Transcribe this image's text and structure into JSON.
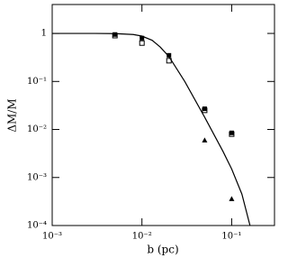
{
  "chart_data": {
    "type": "scatter",
    "x_label": "b (pc)",
    "y_label": "ΔM/M",
    "log_x": true,
    "log_y": true,
    "xlim": [
      0.001,
      0.3
    ],
    "ylim": [
      0.0001,
      4
    ],
    "xticks": [
      {
        "value": 0.001,
        "label": "10⁻³"
      },
      {
        "value": 0.01,
        "label": "10⁻²"
      },
      {
        "value": 0.1,
        "label": "10⁻¹"
      }
    ],
    "yticks": [
      {
        "value": 0.0001,
        "label": "10⁻⁴"
      },
      {
        "value": 0.001,
        "label": "10⁻³"
      },
      {
        "value": 0.01,
        "label": "10⁻²"
      },
      {
        "value": 0.1,
        "label": "10⁻¹"
      },
      1
    ],
    "series": [
      {
        "marker": "line",
        "color": "#000000",
        "x": [
          0.001,
          0.003,
          0.005,
          0.008,
          0.01,
          0.013,
          0.016,
          0.02,
          0.03,
          0.05,
          0.08,
          0.1,
          0.13,
          0.16
        ],
        "values": [
          1,
          1,
          0.99,
          0.95,
          0.88,
          0.72,
          0.52,
          0.33,
          0.1,
          0.018,
          0.0035,
          0.0015,
          0.00045,
          0.0001
        ]
      },
      {
        "marker": "square-filled",
        "color": "#000000",
        "x": [
          0.005,
          0.01,
          0.02,
          0.05,
          0.1
        ],
        "values": [
          0.95,
          0.8,
          0.35,
          0.027,
          0.0085
        ]
      },
      {
        "marker": "square-open",
        "color": "#000000",
        "x": [
          0.005,
          0.01,
          0.02,
          0.05,
          0.1
        ],
        "values": [
          0.9,
          0.63,
          0.27,
          0.025,
          0.008
        ]
      },
      {
        "marker": "triangle-filled",
        "color": "#000000",
        "x": [
          0.05,
          0.1
        ],
        "values": [
          0.006,
          0.00036
        ]
      }
    ]
  }
}
